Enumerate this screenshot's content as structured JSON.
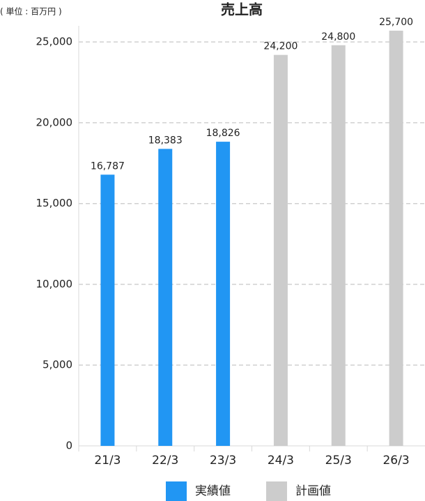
{
  "chart_data": {
    "type": "bar",
    "title": "売上高",
    "unit_label": "( 単位 : 百万円 )",
    "categories": [
      "21/3",
      "22/3",
      "23/3",
      "24/3",
      "25/3",
      "26/3"
    ],
    "series": [
      {
        "name": "実績値",
        "color": "#2196f3",
        "values": [
          16787,
          18383,
          18826,
          null,
          null,
          null
        ],
        "value_labels": [
          "16,787",
          "18,383",
          "18,826",
          null,
          null,
          null
        ]
      },
      {
        "name": "計画値",
        "color": "#cccccc",
        "values": [
          null,
          null,
          null,
          24200,
          24800,
          25700
        ],
        "value_labels": [
          null,
          null,
          null,
          "24,200",
          "24,800",
          "25,700"
        ]
      }
    ],
    "ylim": [
      0,
      26000
    ],
    "yticks": [
      0,
      {
        "value": 5000,
        "label": "5,000"
      },
      {
        "value": 10000,
        "label": "10,000"
      },
      {
        "value": 15000,
        "label": "15,000"
      },
      {
        "value": 20000,
        "label": "20,000"
      },
      {
        "value": 25000,
        "label": "25,000"
      }
    ],
    "grid": true
  }
}
